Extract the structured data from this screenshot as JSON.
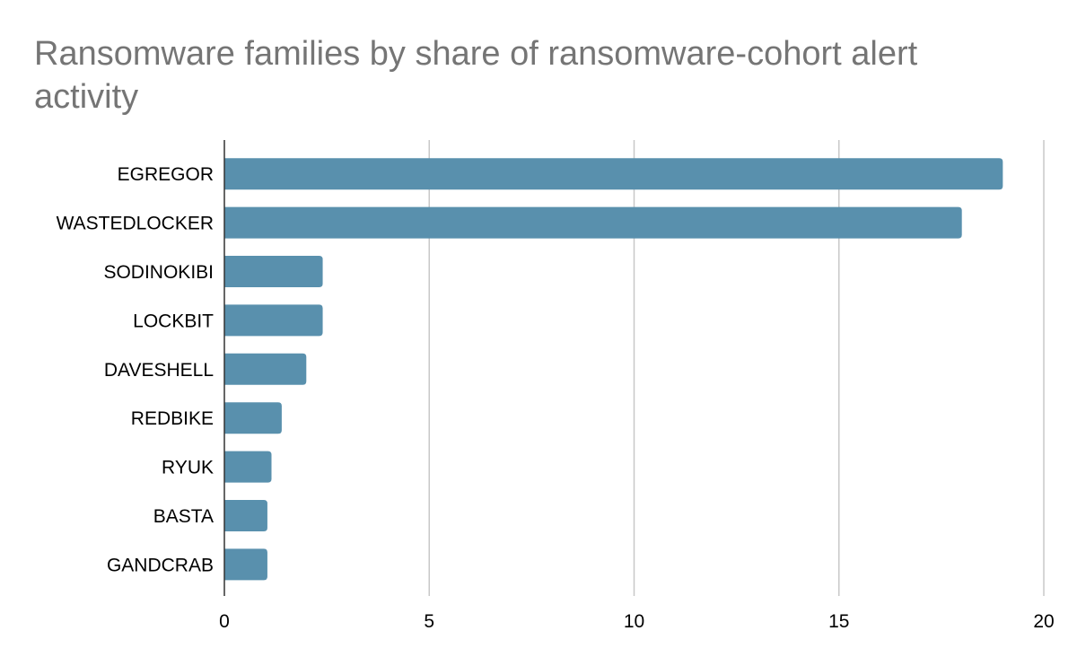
{
  "chart_data": {
    "type": "bar",
    "orientation": "horizontal",
    "title": "Ransomware families by share of ransomware-cohort alert activity",
    "xlabel": "",
    "ylabel": "",
    "categories": [
      "EGREGOR",
      "WASTEDLOCKER",
      "SODINOKIBI",
      "LOCKBIT",
      "DAVESHELL",
      "REDBIKE",
      "RYUK",
      "BASTA",
      "GANDCRAB"
    ],
    "values": [
      19,
      18,
      2.4,
      2.4,
      2,
      1.4,
      1.15,
      1.05,
      1.05
    ],
    "xlim": [
      0,
      20
    ],
    "xticks": [
      0,
      5,
      10,
      15,
      20
    ],
    "grid": "vertical",
    "legend": "none",
    "colors": {
      "bar": "#5990ad",
      "grid": "#c8c8c8",
      "axis": "#333333",
      "title": "#757575"
    }
  }
}
